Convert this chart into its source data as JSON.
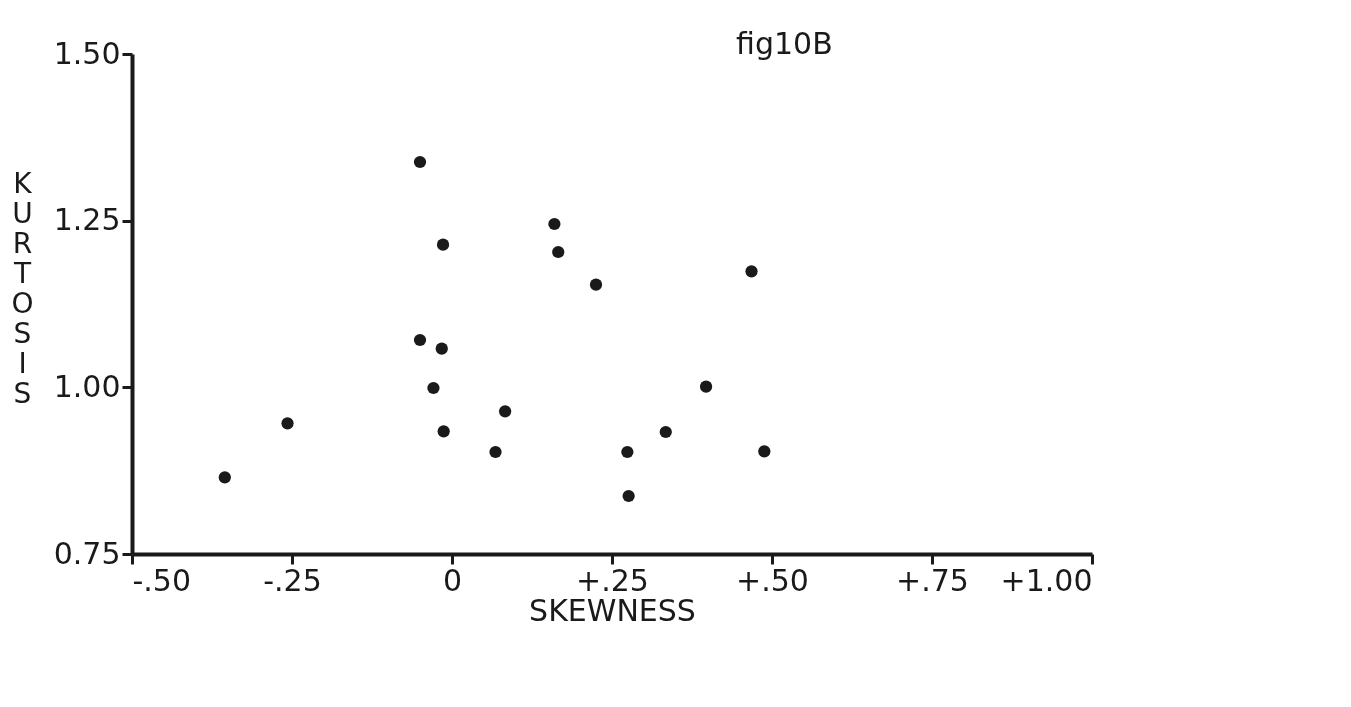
{
  "chart_data": {
    "type": "scatter",
    "xlabel": "SKEWNESS",
    "ylabel": "KURTOSIS",
    "annotations": [
      "fig10B"
    ],
    "x": [
      -0.355,
      -0.257,
      -0.05,
      -0.014,
      -0.05,
      -0.016,
      -0.029,
      -0.013,
      0.083,
      0.068,
      0.16,
      0.166,
      0.225,
      0.468,
      0.397,
      0.334,
      0.274,
      0.276,
      0.488
    ],
    "series": [
      {
        "color": "#1a1a1a",
        "values": [
          0.865,
          0.946,
          1.338,
          1.214,
          1.071,
          1.058,
          0.999,
          0.934,
          0.964,
          0.903,
          1.245,
          1.203,
          1.154,
          1.174,
          1.001,
          0.933,
          0.903,
          0.837,
          0.904
        ]
      }
    ],
    "marker": "circle",
    "grid": false,
    "legend": false,
    "xlim": [
      -0.5,
      1.0
    ],
    "ylim": [
      0.75,
      1.5
    ],
    "xticks": [
      {
        "value": -0.5,
        "label": "-.50"
      },
      {
        "value": -0.25,
        "label": "-.25"
      },
      0,
      {
        "value": 0.25,
        "label": "+.25"
      },
      {
        "value": 0.5,
        "label": "+.50"
      },
      {
        "value": 0.75,
        "label": "+.75"
      },
      {
        "value": 1.0,
        "label": "+1.00"
      }
    ],
    "yticks": [
      {
        "value": 0.75,
        "label": "0.75"
      },
      {
        "value": 1.0,
        "label": "1.00"
      },
      {
        "value": 1.25,
        "label": "1.25"
      },
      {
        "value": 1.5,
        "label": "1.50"
      }
    ]
  }
}
